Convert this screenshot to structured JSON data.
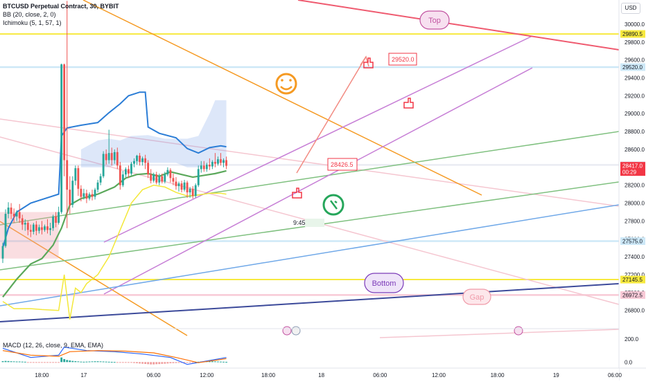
{
  "header": {
    "symbol_line": "BTCUSD Perpetual Contract, 30, BYBIT",
    "bb_line": "BB (20, close, 2, 0)",
    "ichimoku_line": "Ichimoku (5, 1, 57, 1)",
    "currency": "USD",
    "macd_line": "MACD (12, 26, close, 9, EMA, EMA)"
  },
  "chart_data": {
    "type": "candlestick",
    "symbol": "BTCUSD Perpetual Contract",
    "exchange": "BYBIT",
    "interval": "30",
    "ylim": [
      26620,
      30270
    ],
    "y_ticks": [
      26800,
      27000,
      27200,
      27400,
      27600,
      27800,
      28000,
      28200,
      28400,
      28600,
      28800,
      29000,
      29200,
      29400,
      29600,
      29800,
      30000
    ],
    "x_ticks": [
      "18:00",
      "17",
      "06:00",
      "12:00",
      "18:00",
      "18",
      "06:00",
      "12:00",
      "18:00",
      "19",
      "06:00"
    ],
    "x_index_range": [
      0,
      220
    ],
    "x_tick_index": [
      14,
      29,
      54,
      73,
      95,
      114,
      135,
      156,
      177,
      198,
      219
    ],
    "price_labels": [
      {
        "value": 29890.5,
        "text": "29890.5",
        "color": "#f7e93e",
        "line": true
      },
      {
        "value": 29520.0,
        "text": "29520.0",
        "color": "#cde8f7",
        "line": true
      },
      {
        "value": 28426.5,
        "text": "28426.5",
        "color": "#e9ecf3",
        "line": true
      },
      {
        "value": 28417.0,
        "text": "28417.0",
        "color": "#f23645",
        "line": false,
        "sub": "00:29"
      },
      {
        "value": 27575.0,
        "text": "27575.0",
        "color": "#cde8f7",
        "line": true
      },
      {
        "value": 27145.5,
        "text": "27145.5",
        "color": "#f7e93e",
        "line": true
      },
      {
        "value": 26972.5,
        "text": "26972.5",
        "color": "#f8c9d6",
        "line": true
      }
    ],
    "candles": [
      {
        "i": 0,
        "o": 27380,
        "h": 27560,
        "c": 27520,
        "l": 27330
      },
      {
        "i": 1,
        "o": 27520,
        "h": 27930,
        "c": 27880,
        "l": 27500
      },
      {
        "i": 2,
        "o": 27880,
        "h": 28010,
        "c": 27950,
        "l": 27830
      },
      {
        "i": 3,
        "o": 27950,
        "h": 28000,
        "c": 27880,
        "l": 27820
      },
      {
        "i": 4,
        "o": 27880,
        "h": 27940,
        "c": 27850,
        "l": 27780
      },
      {
        "i": 5,
        "o": 27850,
        "h": 27920,
        "c": 27900,
        "l": 27800
      },
      {
        "i": 6,
        "o": 27900,
        "h": 27990,
        "c": 27830,
        "l": 27780
      },
      {
        "i": 7,
        "o": 27830,
        "h": 27870,
        "c": 27760,
        "l": 27700
      },
      {
        "i": 8,
        "o": 27760,
        "h": 27820,
        "c": 27780,
        "l": 27690
      },
      {
        "i": 9,
        "o": 27780,
        "h": 27800,
        "c": 27700,
        "l": 27640
      },
      {
        "i": 10,
        "o": 27700,
        "h": 27760,
        "c": 27680,
        "l": 27620
      },
      {
        "i": 11,
        "o": 27680,
        "h": 27780,
        "c": 27760,
        "l": 27650
      },
      {
        "i": 12,
        "o": 27760,
        "h": 27800,
        "c": 27690,
        "l": 27640
      },
      {
        "i": 13,
        "o": 27690,
        "h": 27760,
        "c": 27730,
        "l": 27660
      },
      {
        "i": 14,
        "o": 27730,
        "h": 27800,
        "c": 27700,
        "l": 27650
      },
      {
        "i": 15,
        "o": 27700,
        "h": 27760,
        "c": 27740,
        "l": 27680
      },
      {
        "i": 16,
        "o": 27740,
        "h": 27820,
        "c": 27700,
        "l": 27660
      },
      {
        "i": 17,
        "o": 27700,
        "h": 27780,
        "c": 27720,
        "l": 27640
      },
      {
        "i": 18,
        "o": 27720,
        "h": 27870,
        "c": 27850,
        "l": 27690
      },
      {
        "i": 19,
        "o": 27850,
        "h": 27900,
        "c": 27780,
        "l": 27730
      },
      {
        "i": 20,
        "o": 27780,
        "h": 27960,
        "c": 27900,
        "l": 27760
      },
      {
        "i": 21,
        "o": 27900,
        "h": 29560,
        "c": 29550,
        "l": 27880
      },
      {
        "i": 22,
        "o": 29550,
        "h": 29560,
        "c": 28480,
        "l": 28300
      },
      {
        "i": 23,
        "o": 28480,
        "h": 30260,
        "c": 28150,
        "l": 27720
      },
      {
        "i": 24,
        "o": 28150,
        "h": 28300,
        "c": 27980,
        "l": 27880
      },
      {
        "i": 25,
        "o": 27980,
        "h": 28300,
        "c": 28250,
        "l": 27950
      },
      {
        "i": 26,
        "o": 28250,
        "h": 28420,
        "c": 28390,
        "l": 28200
      },
      {
        "i": 27,
        "o": 28390,
        "h": 28420,
        "c": 28160,
        "l": 28080
      },
      {
        "i": 28,
        "o": 28160,
        "h": 28200,
        "c": 28070,
        "l": 28020
      },
      {
        "i": 29,
        "o": 28070,
        "h": 28160,
        "c": 28110,
        "l": 28040
      },
      {
        "i": 30,
        "o": 28110,
        "h": 28150,
        "c": 28050,
        "l": 28000
      },
      {
        "i": 31,
        "o": 28050,
        "h": 28120,
        "c": 28100,
        "l": 28030
      },
      {
        "i": 32,
        "o": 28100,
        "h": 28150,
        "c": 28070,
        "l": 28030
      },
      {
        "i": 33,
        "o": 28070,
        "h": 28170,
        "c": 28150,
        "l": 28040
      },
      {
        "i": 34,
        "o": 28150,
        "h": 28260,
        "c": 28230,
        "l": 28120
      },
      {
        "i": 35,
        "o": 28230,
        "h": 28330,
        "c": 28300,
        "l": 28200
      },
      {
        "i": 36,
        "o": 28300,
        "h": 28580,
        "c": 28550,
        "l": 28280
      },
      {
        "i": 37,
        "o": 28550,
        "h": 28600,
        "c": 28480,
        "l": 28430
      },
      {
        "i": 38,
        "o": 28480,
        "h": 28820,
        "c": 28560,
        "l": 28440
      },
      {
        "i": 39,
        "o": 28560,
        "h": 28620,
        "c": 28480,
        "l": 28420
      },
      {
        "i": 40,
        "o": 28480,
        "h": 28600,
        "c": 28570,
        "l": 28440
      },
      {
        "i": 41,
        "o": 28570,
        "h": 28620,
        "c": 28420,
        "l": 28380
      },
      {
        "i": 42,
        "o": 28420,
        "h": 28460,
        "c": 28200,
        "l": 28150
      },
      {
        "i": 43,
        "o": 28200,
        "h": 28360,
        "c": 28320,
        "l": 28180
      },
      {
        "i": 44,
        "o": 28320,
        "h": 28400,
        "c": 28380,
        "l": 28290
      },
      {
        "i": 45,
        "o": 28380,
        "h": 28420,
        "c": 28330,
        "l": 28280
      },
      {
        "i": 46,
        "o": 28330,
        "h": 28460,
        "c": 28440,
        "l": 28310
      },
      {
        "i": 47,
        "o": 28440,
        "h": 28500,
        "c": 28470,
        "l": 28400
      },
      {
        "i": 48,
        "o": 28470,
        "h": 28540,
        "c": 28530,
        "l": 28430
      },
      {
        "i": 49,
        "o": 28530,
        "h": 28560,
        "c": 28460,
        "l": 28420
      },
      {
        "i": 50,
        "o": 28460,
        "h": 28520,
        "c": 28500,
        "l": 28420
      },
      {
        "i": 51,
        "o": 28500,
        "h": 28540,
        "c": 28450,
        "l": 28380
      },
      {
        "i": 52,
        "o": 28450,
        "h": 28480,
        "c": 28320,
        "l": 28280
      },
      {
        "i": 53,
        "o": 28320,
        "h": 28380,
        "c": 28250,
        "l": 28220
      },
      {
        "i": 54,
        "o": 28250,
        "h": 28340,
        "c": 28320,
        "l": 28230
      },
      {
        "i": 55,
        "o": 28320,
        "h": 28350,
        "c": 28230,
        "l": 28210
      },
      {
        "i": 56,
        "o": 28230,
        "h": 28330,
        "c": 28300,
        "l": 28200
      },
      {
        "i": 57,
        "o": 28300,
        "h": 28330,
        "c": 28240,
        "l": 28220
      },
      {
        "i": 58,
        "o": 28240,
        "h": 28350,
        "c": 28320,
        "l": 28220
      },
      {
        "i": 59,
        "o": 28320,
        "h": 28400,
        "c": 28370,
        "l": 28300
      },
      {
        "i": 60,
        "o": 28370,
        "h": 28390,
        "c": 28280,
        "l": 28230
      },
      {
        "i": 61,
        "o": 28280,
        "h": 28330,
        "c": 28240,
        "l": 28200
      },
      {
        "i": 62,
        "o": 28240,
        "h": 28290,
        "c": 28190,
        "l": 28150
      },
      {
        "i": 63,
        "o": 28190,
        "h": 28240,
        "c": 28220,
        "l": 28130
      },
      {
        "i": 64,
        "o": 28220,
        "h": 28250,
        "c": 28150,
        "l": 28120
      },
      {
        "i": 65,
        "o": 28150,
        "h": 28260,
        "c": 28230,
        "l": 28130
      },
      {
        "i": 66,
        "o": 28230,
        "h": 28250,
        "c": 28120,
        "l": 28060
      },
      {
        "i": 67,
        "o": 28120,
        "h": 28180,
        "c": 28160,
        "l": 28060
      },
      {
        "i": 68,
        "o": 28160,
        "h": 28190,
        "c": 28080,
        "l": 28050
      },
      {
        "i": 69,
        "o": 28080,
        "h": 28220,
        "c": 28200,
        "l": 28060
      },
      {
        "i": 70,
        "o": 28200,
        "h": 28420,
        "c": 28380,
        "l": 28180
      },
      {
        "i": 71,
        "o": 28380,
        "h": 28470,
        "c": 28420,
        "l": 28340
      },
      {
        "i": 72,
        "o": 28420,
        "h": 28470,
        "c": 28380,
        "l": 28350
      },
      {
        "i": 73,
        "o": 28380,
        "h": 28450,
        "c": 28430,
        "l": 28350
      },
      {
        "i": 74,
        "o": 28430,
        "h": 28500,
        "c": 28410,
        "l": 28370
      },
      {
        "i": 75,
        "o": 28410,
        "h": 28480,
        "c": 28460,
        "l": 28380
      },
      {
        "i": 76,
        "o": 28460,
        "h": 28560,
        "c": 28440,
        "l": 28400
      },
      {
        "i": 77,
        "o": 28440,
        "h": 28520,
        "c": 28490,
        "l": 28420
      },
      {
        "i": 78,
        "o": 28490,
        "h": 28560,
        "c": 28450,
        "l": 28420
      },
      {
        "i": 79,
        "o": 28450,
        "h": 28500,
        "c": 28480,
        "l": 28400
      },
      {
        "i": 80,
        "o": 28480,
        "h": 28520,
        "c": 28417,
        "l": 28380
      }
    ],
    "bb_upper": [
      [
        0,
        27500
      ],
      [
        2,
        27720
      ],
      [
        5,
        27900
      ],
      [
        10,
        28000
      ],
      [
        15,
        28050
      ],
      [
        20,
        28100
      ],
      [
        21,
        28750
      ],
      [
        23,
        28840
      ],
      [
        28,
        28870
      ],
      [
        34,
        28900
      ],
      [
        38,
        29010
      ],
      [
        42,
        29110
      ],
      [
        45,
        29200
      ],
      [
        49,
        29240
      ],
      [
        51,
        29240
      ],
      [
        52,
        28850
      ],
      [
        56,
        28780
      ],
      [
        62,
        28730
      ],
      [
        66,
        28610
      ],
      [
        70,
        28560
      ],
      [
        74,
        28620
      ],
      [
        78,
        28640
      ],
      [
        80,
        28630
      ]
    ],
    "bb_mid": [
      [
        0,
        26950
      ],
      [
        5,
        27150
      ],
      [
        10,
        27320
      ],
      [
        14,
        27380
      ],
      [
        18,
        27530
      ],
      [
        21,
        27720
      ],
      [
        24,
        27980
      ],
      [
        28,
        28050
      ],
      [
        34,
        28100
      ],
      [
        40,
        28180
      ],
      [
        44,
        28280
      ],
      [
        48,
        28320
      ],
      [
        52,
        28330
      ],
      [
        56,
        28300
      ],
      [
        60,
        28350
      ],
      [
        64,
        28320
      ],
      [
        68,
        28290
      ],
      [
        72,
        28310
      ],
      [
        76,
        28330
      ],
      [
        80,
        28360
      ]
    ],
    "conversion_line": [
      [
        0,
        26900
      ],
      [
        4,
        26820
      ],
      [
        10,
        26820
      ],
      [
        14,
        26810
      ],
      [
        20,
        26800
      ],
      [
        22,
        27200
      ],
      [
        24,
        26700
      ],
      [
        26,
        27050
      ],
      [
        28,
        27000
      ],
      [
        30,
        27100
      ],
      [
        34,
        27200
      ],
      [
        38,
        27400
      ],
      [
        42,
        27700
      ],
      [
        46,
        28000
      ],
      [
        50,
        28150
      ],
      [
        54,
        28200
      ],
      [
        58,
        28180
      ],
      [
        62,
        28120
      ],
      [
        66,
        28080
      ],
      [
        70,
        28090
      ],
      [
        74,
        28110
      ],
      [
        78,
        28110
      ],
      [
        80,
        28100
      ]
    ],
    "cloud": [
      [
        28,
        28600,
        28400
      ],
      [
        34,
        28700,
        28400
      ],
      [
        38,
        28720,
        28400
      ],
      [
        42,
        28700,
        28450
      ],
      [
        46,
        28750,
        28450
      ],
      [
        52,
        28760,
        28450
      ],
      [
        58,
        28720,
        28450
      ],
      [
        62,
        28720,
        28450
      ],
      [
        66,
        28720,
        28400
      ],
      [
        70,
        28750,
        28400
      ],
      [
        74,
        29000,
        28450
      ],
      [
        76,
        29150,
        28450
      ],
      [
        80,
        29150,
        28450
      ]
    ],
    "macd_histogram": [
      8,
      10,
      9,
      7,
      6,
      5,
      5,
      4,
      3,
      -1,
      -2,
      -3,
      -3,
      -4,
      -4,
      -5,
      -6,
      -6,
      -4,
      -3,
      -2,
      40,
      26,
      18,
      14,
      10,
      8,
      6,
      4,
      3,
      4,
      5,
      6,
      7,
      7,
      6,
      5,
      4,
      3,
      2,
      1,
      -1,
      -2,
      -3,
      -4,
      -5,
      -6,
      -8,
      -10,
      -12,
      -14,
      -16,
      -18,
      -20,
      -20,
      -18,
      -17,
      -15,
      -14,
      -12,
      -10,
      -9,
      -8,
      -7,
      -6,
      -5,
      -4,
      -3,
      -2,
      1,
      3,
      5,
      6,
      7,
      8,
      7,
      6,
      5,
      4,
      3,
      2
    ],
    "macd_line": [
      [
        0,
        120
      ],
      [
        10,
        40
      ],
      [
        20,
        60
      ],
      [
        22,
        130
      ],
      [
        30,
        100
      ],
      [
        40,
        90
      ],
      [
        50,
        70
      ],
      [
        60,
        40
      ],
      [
        66,
        -20
      ],
      [
        72,
        5
      ],
      [
        80,
        40
      ]
    ],
    "signal_line": [
      [
        0,
        100
      ],
      [
        10,
        60
      ],
      [
        20,
        50
      ],
      [
        24,
        90
      ],
      [
        34,
        100
      ],
      [
        44,
        95
      ],
      [
        54,
        80
      ],
      [
        62,
        40
      ],
      [
        70,
        -5
      ],
      [
        76,
        15
      ],
      [
        80,
        30
      ]
    ],
    "macd_ylim": [
      -40,
      260
    ],
    "macd_ticks": [
      0,
      200
    ],
    "annotations": {
      "top": "Top",
      "bottom": "Bottom",
      "gap": "Gap",
      "target_label": "29520.0",
      "entry_label": "28426.5",
      "timer": "9:45"
    }
  }
}
